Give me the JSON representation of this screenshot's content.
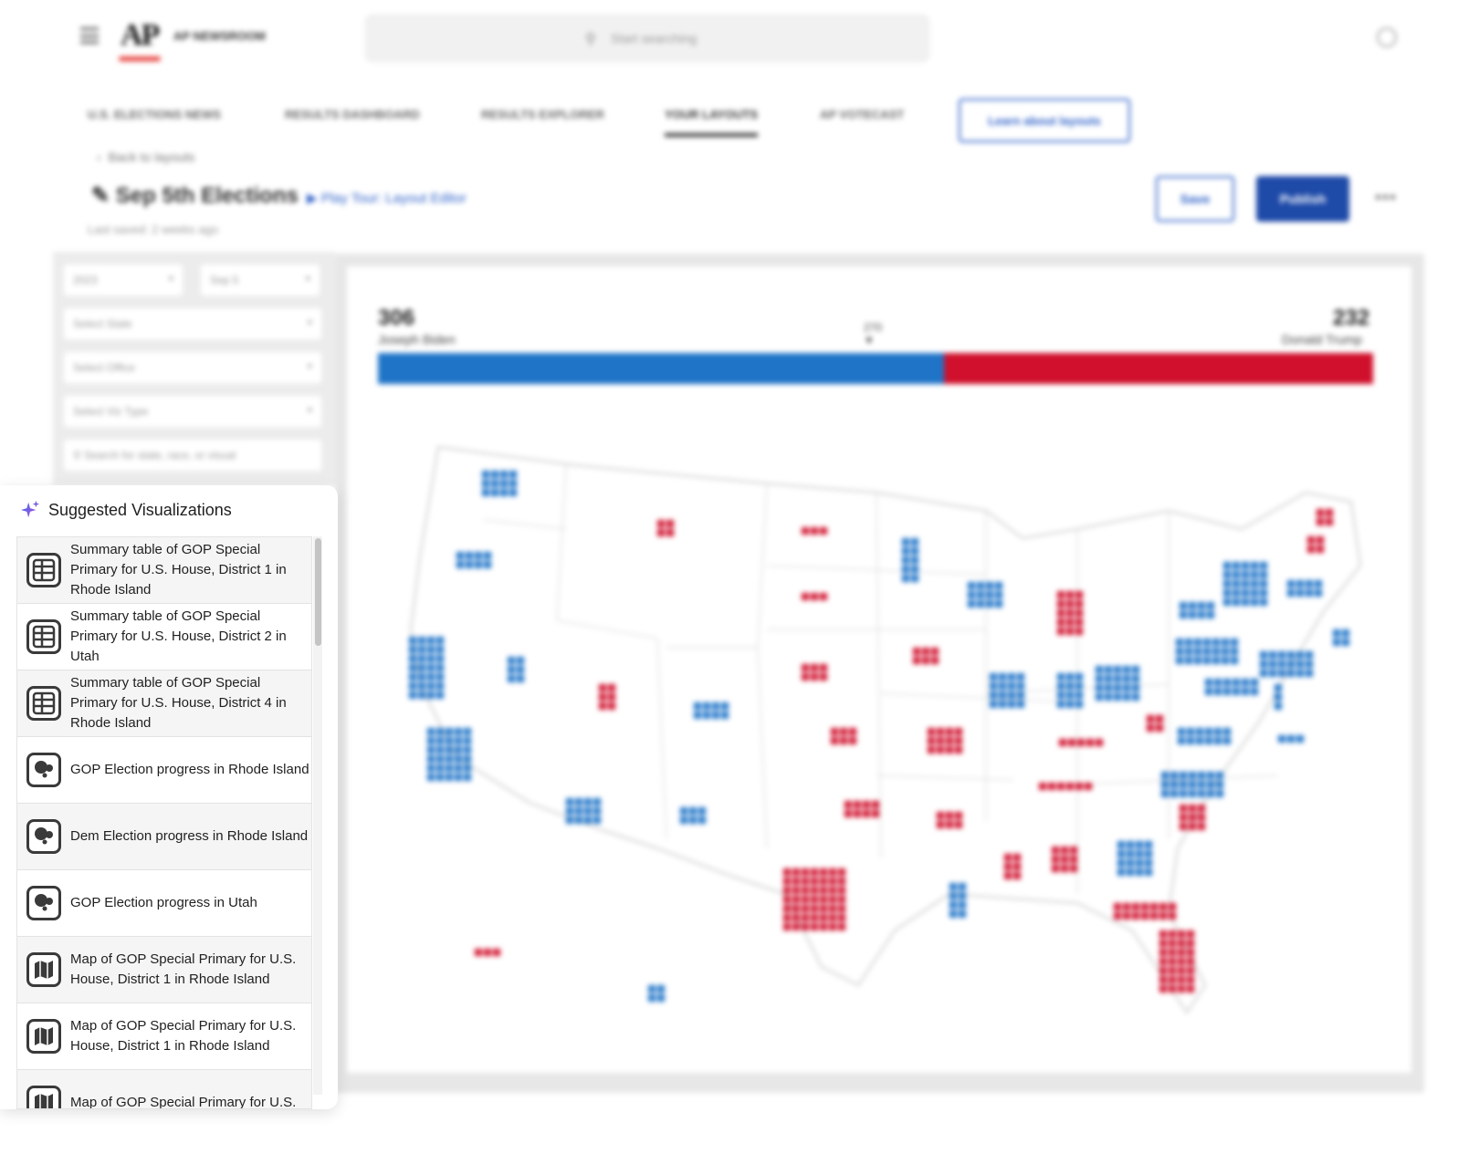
{
  "app": {
    "brand": "AP NEWSROOM",
    "search_placeholder": "Start searching"
  },
  "nav": {
    "tabs": [
      {
        "label": "U.S. ELECTIONS NEWS"
      },
      {
        "label": "RESULTS DASHBOARD"
      },
      {
        "label": "RESULTS EXPLORER"
      },
      {
        "label": "YOUR LAYOUTS"
      },
      {
        "label": "AP VOTECAST"
      }
    ],
    "learn_button": "Learn about layouts"
  },
  "page": {
    "back_link": "Back to layouts",
    "title": "Sep 5th Elections",
    "tour_link": "Play Tour: Layout Editor",
    "last_saved": "Last saved: 2 weeks ago",
    "save_label": "Save",
    "publish_label": "Publish",
    "more_label": "•••"
  },
  "filters": {
    "year": "2023",
    "date": "Sep 5",
    "state": "Select State",
    "office": "Select Office",
    "viz_type": "Select Viz Type",
    "search_placeholder": "Search for state, race, or visual"
  },
  "results": {
    "dem_votes": "306",
    "dem_name": "Joseph Biden",
    "gop_votes": "232",
    "gop_name": "Donald Trump",
    "threshold": "270",
    "dem_color": "#1f74c8",
    "gop_color": "#d0102c"
  },
  "suggestions": {
    "title": "Suggested Visualizations",
    "items": [
      {
        "label": "Summary table of GOP Special Primary for U.S. House, District 1 in Rhode Island",
        "icon": "table-icon"
      },
      {
        "label": "Summary table of GOP Special Primary for U.S. House, District 2 in Utah",
        "icon": "table-icon"
      },
      {
        "label": "Summary table of GOP Special Primary for U.S. House, District 4 in Rhode Island",
        "icon": "table-icon"
      },
      {
        "label": "GOP Election progress in Rhode Island",
        "icon": "progress-icon"
      },
      {
        "label": "Dem Election progress in Rhode Island",
        "icon": "progress-icon"
      },
      {
        "label": "GOP Election progress in Utah",
        "icon": "progress-icon"
      },
      {
        "label": "Map of GOP Special Primary for U.S. House, District 1 in Rhode Island",
        "icon": "map-icon"
      },
      {
        "label": "Map of GOP Special Primary for U.S. House, District 1 in Rhode Island",
        "icon": "map-icon"
      },
      {
        "label": "Map of GOP Special Primary for U.S.",
        "icon": "map-icon"
      }
    ]
  }
}
